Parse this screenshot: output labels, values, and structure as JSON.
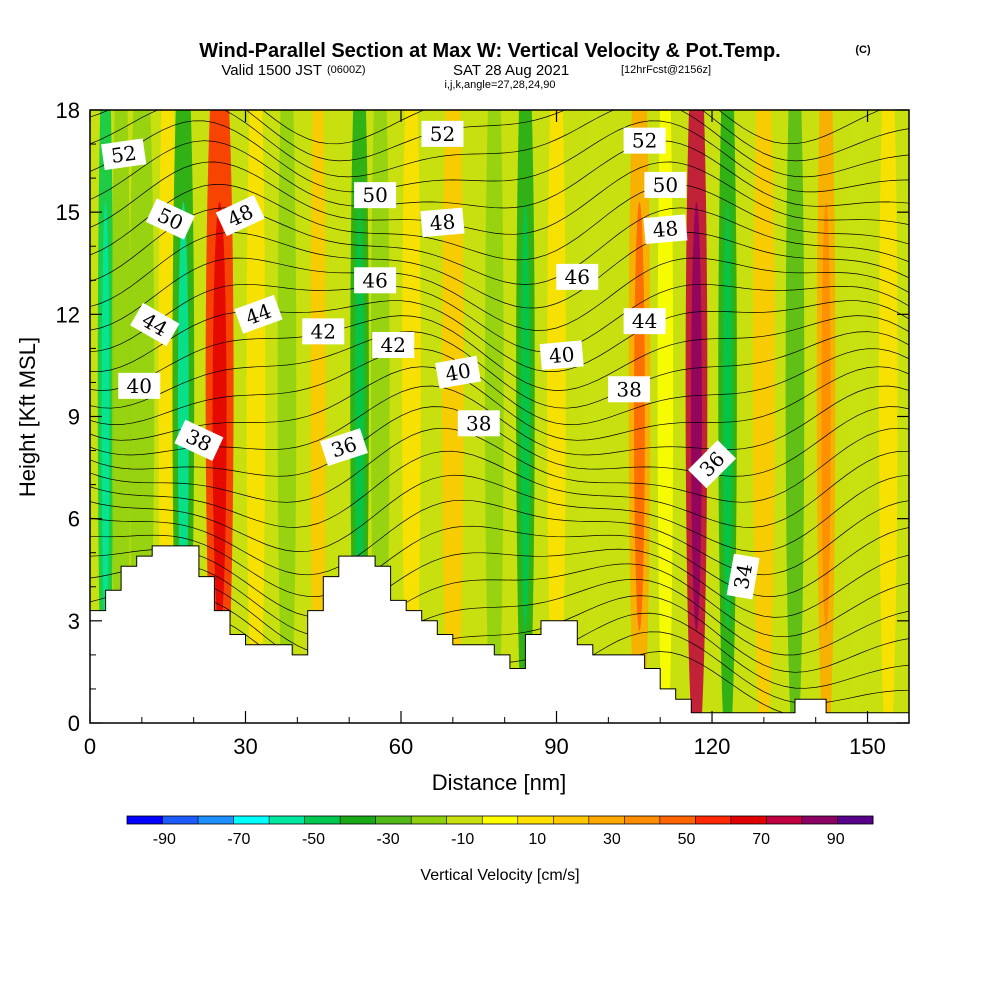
{
  "title": {
    "main": "Wind-Parallel Section at Max W: Vertical Velocity & Pot.Temp.",
    "copyright": "(C)",
    "valid_pre": "Valid 1500 JST",
    "valid_utc": "(0600Z)",
    "valid_date": "SAT 28 Aug 2021",
    "forecast": "[12hrFcst@2156z]",
    "indices": "i,j,k,angle=27,28,24,90"
  },
  "chart_data": {
    "type": "heatmap",
    "xlabel": "Distance [nm]",
    "ylabel": "Height [Kft MSL]",
    "xlim": [
      0,
      158
    ],
    "ylim": [
      0,
      18
    ],
    "x_ticks": [
      0,
      30,
      60,
      90,
      120,
      150
    ],
    "y_ticks": [
      0,
      3,
      6,
      9,
      12,
      15,
      18
    ],
    "colorbar": {
      "label": "Vertical Velocity [cm/s]",
      "tick_labels": [
        "-90",
        "-70",
        "-50",
        "-30",
        "-10",
        "10",
        "30",
        "50",
        "70",
        "90"
      ],
      "bounds": [
        -100,
        100
      ],
      "step": 10,
      "colors": [
        "#0000ff",
        "#1c5cff",
        "#1e90ff",
        "#00ffff",
        "#00e8a0",
        "#00c850",
        "#18a818",
        "#50b818",
        "#8ed010",
        "#c8e010",
        "#ffff00",
        "#ffe000",
        "#ffc800",
        "#ffa800",
        "#ff8c00",
        "#ff6400",
        "#ff2800",
        "#e00000",
        "#c00040",
        "#8c0064",
        "#58008c"
      ]
    },
    "vertical_velocity_bands": [
      {
        "x": 3,
        "w": 0.5,
        "w_cms": -45
      },
      {
        "x": 6,
        "w": 0.6,
        "w_cms": -20
      },
      {
        "x": 10,
        "w": 0.8,
        "w_cms": -12
      },
      {
        "x": 15,
        "w": 0.6,
        "w_cms": 15
      },
      {
        "x": 18,
        "w": 0.7,
        "w_cms": -40
      },
      {
        "x": 25,
        "w": 0.9,
        "w_cms": 62
      },
      {
        "x": 32,
        "w": 0.6,
        "w_cms": 18
      },
      {
        "x": 38,
        "w": 0.6,
        "w_cms": -12
      },
      {
        "x": 44,
        "w": 0.5,
        "w_cms": 25
      },
      {
        "x": 52,
        "w": 0.6,
        "w_cms": -32
      },
      {
        "x": 56,
        "w": 0.6,
        "w_cms": -15
      },
      {
        "x": 62,
        "w": 0.6,
        "w_cms": 10
      },
      {
        "x": 70,
        "w": 0.7,
        "w_cms": 25
      },
      {
        "x": 78,
        "w": 0.6,
        "w_cms": -15
      },
      {
        "x": 84,
        "w": 0.6,
        "w_cms": -32
      },
      {
        "x": 90,
        "w": 0.6,
        "w_cms": 12
      },
      {
        "x": 97,
        "w": 0.5,
        "w_cms": -8
      },
      {
        "x": 106,
        "w": 0.7,
        "w_cms": 35
      },
      {
        "x": 111,
        "w": 0.5,
        "w_cms": 5
      },
      {
        "x": 117,
        "w": 0.7,
        "w_cms": 80
      },
      {
        "x": 123,
        "w": 0.6,
        "w_cms": -32
      },
      {
        "x": 130,
        "w": 0.7,
        "w_cms": 28
      },
      {
        "x": 136,
        "w": 0.6,
        "w_cms": -22
      },
      {
        "x": 142,
        "w": 0.6,
        "w_cms": 32
      },
      {
        "x": 148,
        "w": 0.6,
        "w_cms": -10
      },
      {
        "x": 154,
        "w": 0.6,
        "w_cms": 10
      }
    ],
    "terrain": [
      [
        0,
        3.3
      ],
      [
        3,
        3.3
      ],
      [
        3,
        3.9
      ],
      [
        6,
        3.9
      ],
      [
        6,
        4.6
      ],
      [
        9,
        4.6
      ],
      [
        9,
        4.9
      ],
      [
        12,
        4.9
      ],
      [
        12,
        5.2
      ],
      [
        21,
        5.2
      ],
      [
        21,
        4.3
      ],
      [
        24,
        4.3
      ],
      [
        24,
        3.3
      ],
      [
        27,
        3.3
      ],
      [
        27,
        2.6
      ],
      [
        30,
        2.6
      ],
      [
        30,
        2.3
      ],
      [
        39,
        2.3
      ],
      [
        39,
        2.0
      ],
      [
        42,
        2.0
      ],
      [
        42,
        3.3
      ],
      [
        45,
        3.3
      ],
      [
        45,
        4.3
      ],
      [
        48,
        4.3
      ],
      [
        48,
        4.9
      ],
      [
        55,
        4.9
      ],
      [
        55,
        4.6
      ],
      [
        58,
        4.6
      ],
      [
        58,
        3.6
      ],
      [
        61,
        3.6
      ],
      [
        61,
        3.3
      ],
      [
        64,
        3.3
      ],
      [
        64,
        3.0
      ],
      [
        67,
        3.0
      ],
      [
        67,
        2.6
      ],
      [
        70,
        2.6
      ],
      [
        70,
        2.3
      ],
      [
        78,
        2.3
      ],
      [
        78,
        2.0
      ],
      [
        81,
        2.0
      ],
      [
        81,
        1.6
      ],
      [
        84,
        1.6
      ],
      [
        84,
        2.6
      ],
      [
        87,
        2.6
      ],
      [
        87,
        3.0
      ],
      [
        94,
        3.0
      ],
      [
        94,
        2.3
      ],
      [
        97,
        2.3
      ],
      [
        97,
        2.0
      ],
      [
        107,
        2.0
      ],
      [
        107,
        1.6
      ],
      [
        110,
        1.6
      ],
      [
        110,
        1.0
      ],
      [
        113,
        1.0
      ],
      [
        113,
        0.7
      ],
      [
        116,
        0.7
      ],
      [
        116,
        0.3
      ],
      [
        136,
        0.3
      ],
      [
        136,
        0.7
      ],
      [
        142,
        0.7
      ],
      [
        142,
        0.3
      ],
      [
        158,
        0.3
      ]
    ],
    "theta_contour_interval": 1,
    "contour_labels": [
      {
        "text": "52",
        "x": 6.5,
        "y": 16.7,
        "angle": -8
      },
      {
        "text": "50",
        "x": 15.5,
        "y": 14.8,
        "angle": 25
      },
      {
        "text": "48",
        "x": 29,
        "y": 14.9,
        "angle": -25
      },
      {
        "text": "44",
        "x": 12.5,
        "y": 11.7,
        "angle": 30
      },
      {
        "text": "44",
        "x": 32.5,
        "y": 12.0,
        "angle": -20
      },
      {
        "text": "40",
        "x": 9.5,
        "y": 9.9,
        "angle": 0
      },
      {
        "text": "38",
        "x": 21,
        "y": 8.3,
        "angle": 25
      },
      {
        "text": "42",
        "x": 45,
        "y": 11.5,
        "angle": 0
      },
      {
        "text": "36",
        "x": 49,
        "y": 8.1,
        "angle": -18
      },
      {
        "text": "52",
        "x": 68,
        "y": 17.3,
        "angle": 0
      },
      {
        "text": "50",
        "x": 55,
        "y": 15.5,
        "angle": 0
      },
      {
        "text": "48",
        "x": 68,
        "y": 14.7,
        "angle": -5
      },
      {
        "text": "46",
        "x": 55,
        "y": 13.0,
        "angle": 0
      },
      {
        "text": "42",
        "x": 58.5,
        "y": 11.1,
        "angle": 0
      },
      {
        "text": "40",
        "x": 71,
        "y": 10.3,
        "angle": -10
      },
      {
        "text": "38",
        "x": 75,
        "y": 8.8,
        "angle": 0
      },
      {
        "text": "40",
        "x": 91,
        "y": 10.8,
        "angle": -5
      },
      {
        "text": "46",
        "x": 94,
        "y": 13.1,
        "angle": 0
      },
      {
        "text": "52",
        "x": 107,
        "y": 17.1,
        "angle": 0
      },
      {
        "text": "50",
        "x": 111,
        "y": 15.8,
        "angle": 0
      },
      {
        "text": "48",
        "x": 111,
        "y": 14.5,
        "angle": -5
      },
      {
        "text": "44",
        "x": 107,
        "y": 11.8,
        "angle": 0
      },
      {
        "text": "38",
        "x": 104,
        "y": 9.8,
        "angle": 0
      },
      {
        "text": "36",
        "x": 120,
        "y": 7.6,
        "angle": -45
      },
      {
        "text": "34",
        "x": 126,
        "y": 4.3,
        "angle": -80
      }
    ]
  }
}
